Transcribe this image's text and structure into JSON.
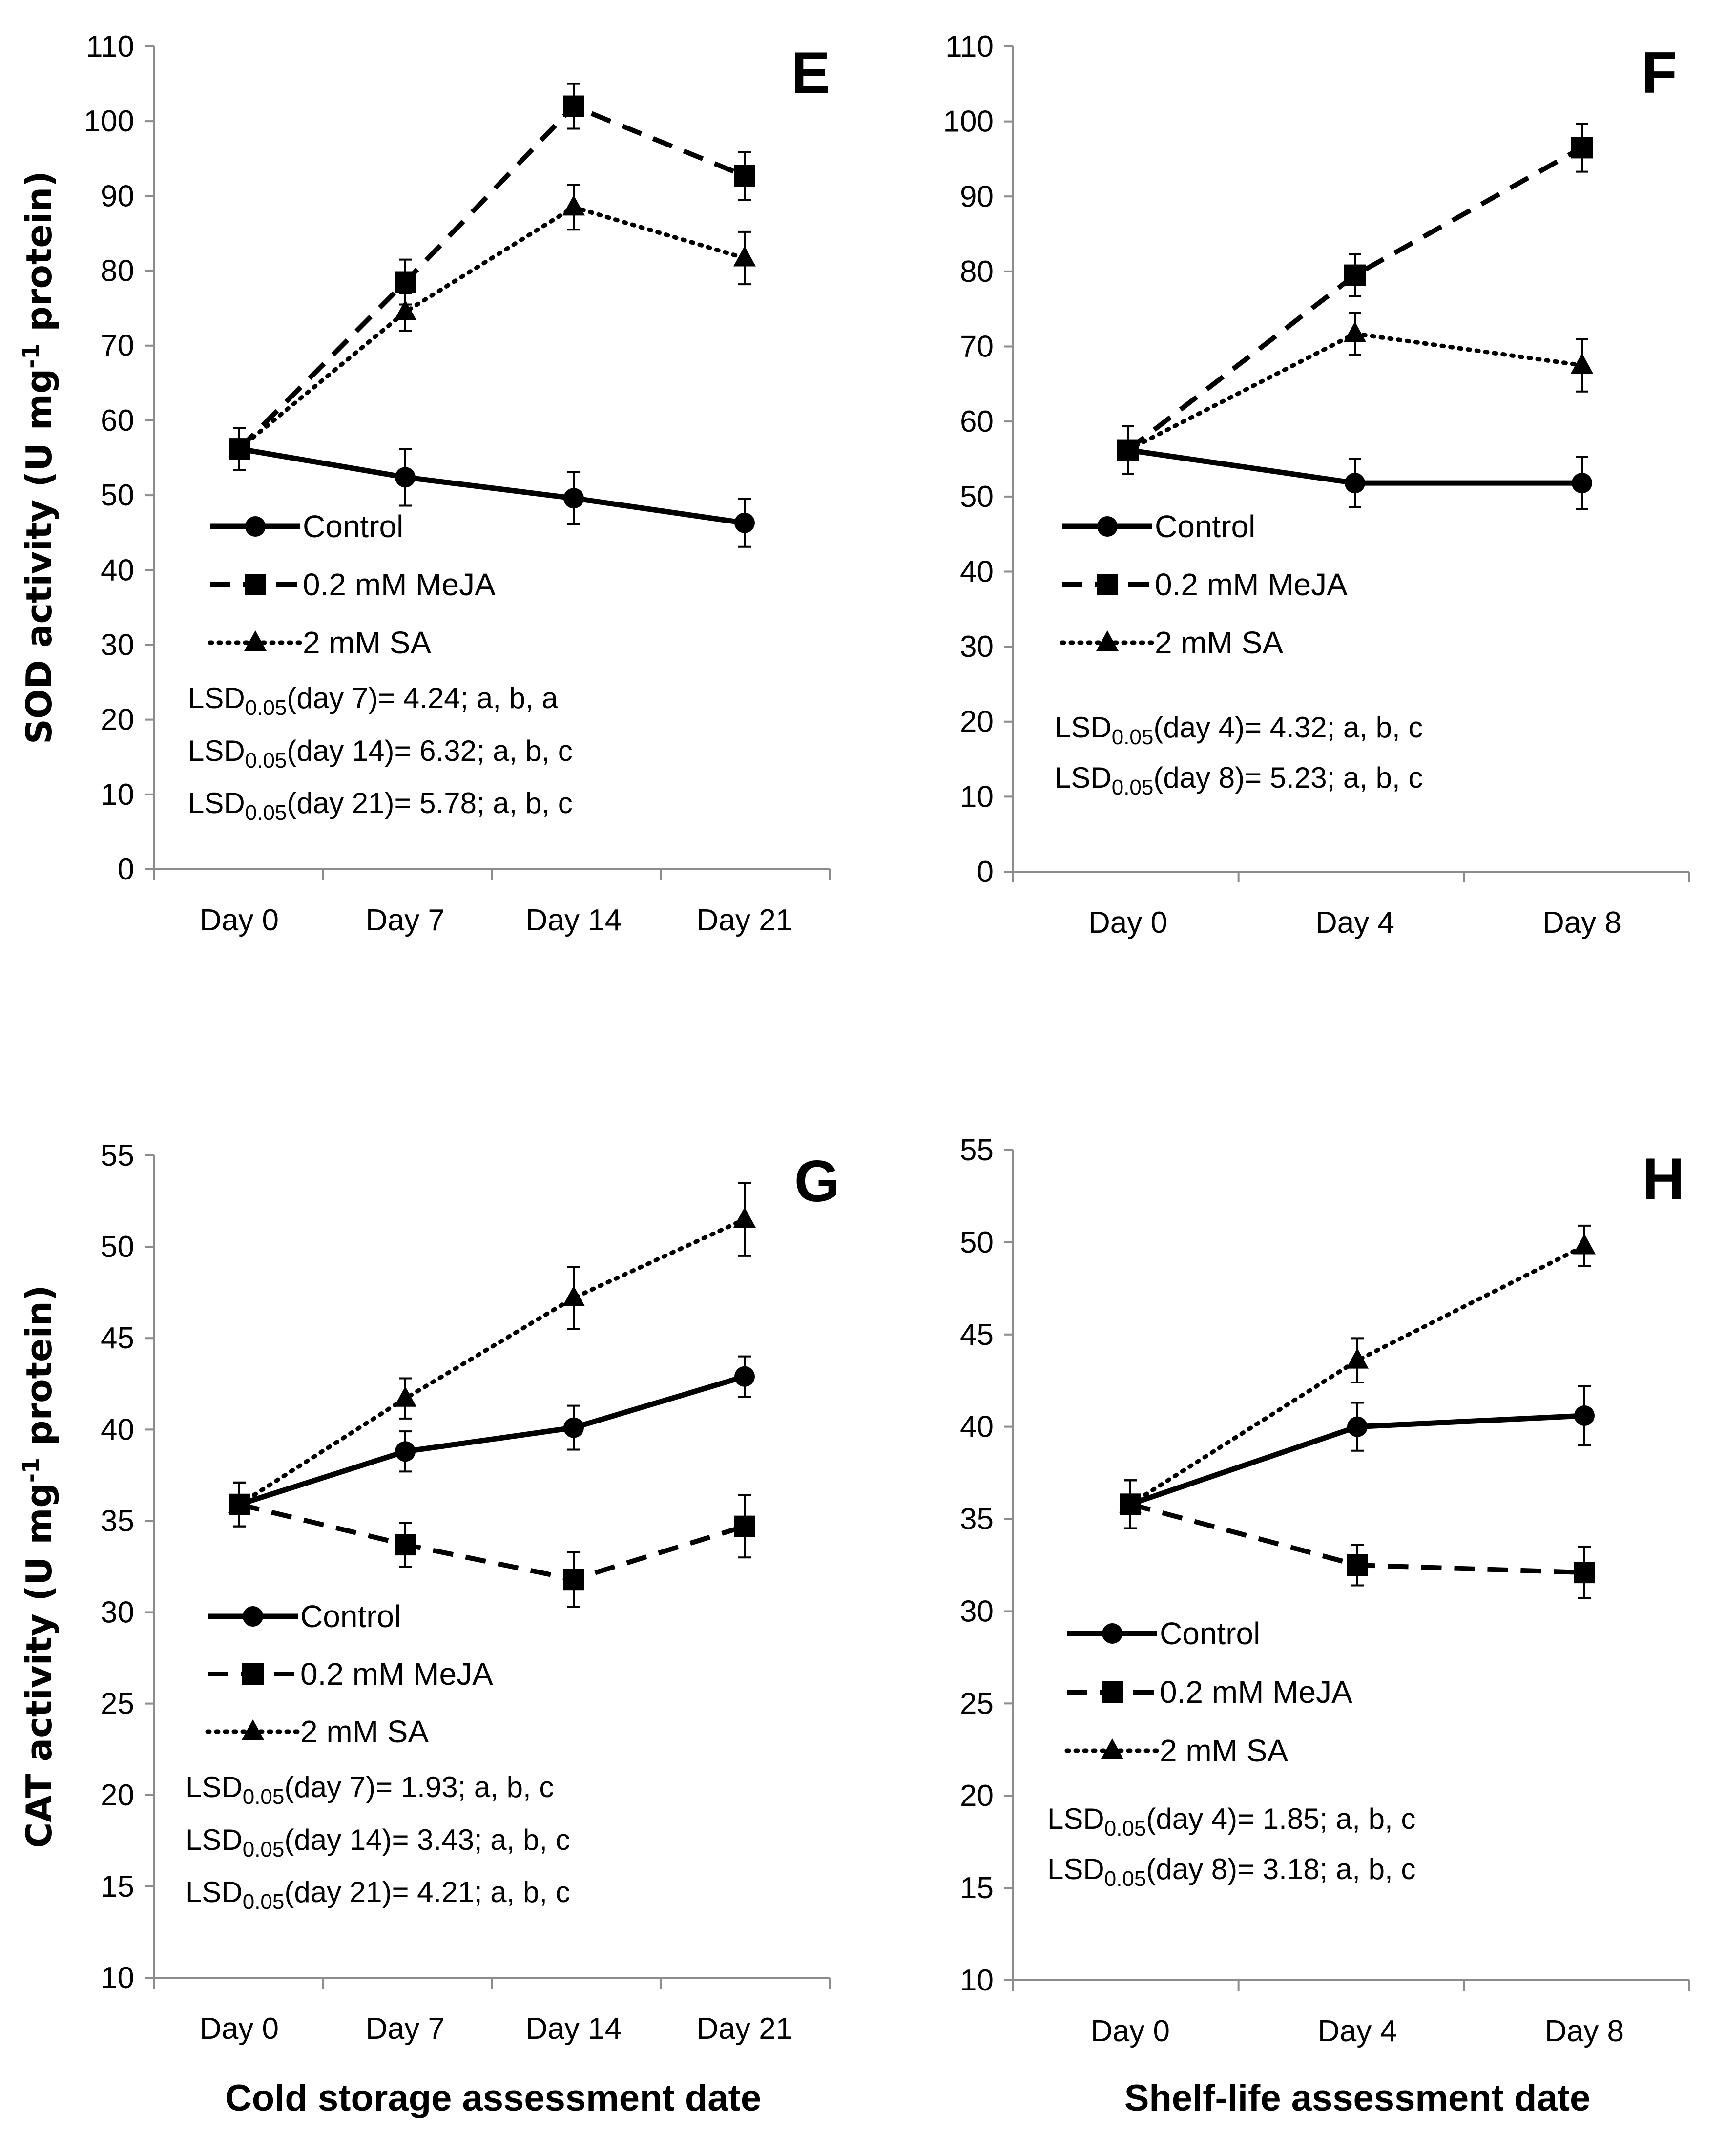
{
  "chart_data": [
    {
      "panel": "E",
      "type": "line",
      "ylabel_main": "SOD activity (U mg",
      "ylabel_sup": "-1",
      "ylabel_rest": " protein)",
      "xlabel": "",
      "ylim": [
        0,
        110
      ],
      "yticks": [
        "0",
        "10",
        "20",
        "30",
        "40",
        "50",
        "60",
        "70",
        "80",
        "90",
        "100",
        "110"
      ],
      "categories": [
        "Day 0",
        "Day 7",
        "Day 14",
        "Day 21"
      ],
      "series": [
        {
          "name": "Control",
          "values": [
            56.2,
            52.4,
            49.6,
            46.3
          ],
          "errors": [
            2.8,
            3.8,
            3.5,
            3.2
          ]
        },
        {
          "name": "0.2 mM MeJA",
          "values": [
            56.2,
            78.5,
            102.0,
            92.7
          ],
          "errors": [
            2.8,
            3.0,
            3.0,
            3.2
          ]
        },
        {
          "name": "2 mM SA",
          "values": [
            56.2,
            74.5,
            88.5,
            81.7
          ],
          "errors": [
            2.8,
            2.5,
            3.0,
            3.5
          ]
        }
      ],
      "annotations": [
        {
          "pre": "LSD",
          "sub": "0.05",
          "post": "(day 7)= 4.24; a, b, a"
        },
        {
          "pre": "LSD",
          "sub": "0.05",
          "post": "(day 14)= 6.32; a, b, c"
        },
        {
          "pre": "LSD",
          "sub": "0.05",
          "post": "(day 21)= 5.78; a, b, c"
        }
      ]
    },
    {
      "panel": "F",
      "type": "line",
      "ylabel_main": "",
      "ylabel_sup": "",
      "ylabel_rest": "",
      "xlabel": "",
      "ylim": [
        0,
        110
      ],
      "yticks": [
        "0",
        "10",
        "20",
        "30",
        "40",
        "50",
        "60",
        "70",
        "80",
        "90",
        "100",
        "110"
      ],
      "categories": [
        "Day 0",
        "Day 4",
        "Day 8"
      ],
      "series": [
        {
          "name": "Control",
          "values": [
            56.2,
            51.8,
            51.8
          ],
          "errors": [
            3.2,
            3.2,
            3.5
          ]
        },
        {
          "name": "0.2 mM MeJA",
          "values": [
            56.2,
            79.5,
            96.5
          ],
          "errors": [
            3.2,
            2.8,
            3.2
          ]
        },
        {
          "name": "2 mM SA",
          "values": [
            56.2,
            71.7,
            67.5
          ],
          "errors": [
            3.2,
            2.8,
            3.5
          ]
        }
      ],
      "annotations": [
        {
          "pre": "LSD",
          "sub": "0.05",
          "post": "(day 4)= 4.32; a, b, c"
        },
        {
          "pre": "LSD",
          "sub": "0.05",
          "post": "(day 8)= 5.23; a, b, c"
        }
      ]
    },
    {
      "panel": "G",
      "type": "line",
      "ylabel_main": "CAT activity (U mg",
      "ylabel_sup": "-1",
      "ylabel_rest": " protein)",
      "xlabel": "Cold storage assessment date",
      "ylim": [
        10,
        55
      ],
      "yticks": [
        "10",
        "15",
        "20",
        "25",
        "30",
        "35",
        "40",
        "45",
        "50",
        "55"
      ],
      "categories": [
        "Day 0",
        "Day 7",
        "Day 14",
        "Day 21"
      ],
      "series": [
        {
          "name": "Control",
          "values": [
            35.9,
            38.8,
            40.1,
            42.9
          ],
          "errors": [
            1.2,
            1.1,
            1.2,
            1.1
          ]
        },
        {
          "name": "0.2 mM MeJA",
          "values": [
            35.9,
            33.7,
            31.8,
            34.7
          ],
          "errors": [
            1.2,
            1.2,
            1.5,
            1.7
          ]
        },
        {
          "name": "2 mM SA",
          "values": [
            35.9,
            41.7,
            47.2,
            51.5
          ],
          "errors": [
            1.2,
            1.1,
            1.7,
            2.0
          ]
        }
      ],
      "annotations": [
        {
          "pre": "LSD",
          "sub": "0.05",
          "post": "(day 7)= 1.93; a, b, c"
        },
        {
          "pre": "LSD",
          "sub": "0.05",
          "post": "(day 14)= 3.43; a, b, c"
        },
        {
          "pre": "LSD",
          "sub": "0.05",
          "post": "(day 21)= 4.21; a, b, c"
        }
      ]
    },
    {
      "panel": "H",
      "type": "line",
      "ylabel_main": "",
      "ylabel_sup": "",
      "ylabel_rest": "",
      "xlabel": "Shelf-life assessment date",
      "ylim": [
        10,
        55
      ],
      "yticks": [
        "10",
        "15",
        "20",
        "25",
        "30",
        "35",
        "40",
        "45",
        "50",
        "55"
      ],
      "categories": [
        "Day 0",
        "Day 4",
        "Day 8"
      ],
      "series": [
        {
          "name": "Control",
          "values": [
            35.8,
            40.0,
            40.6
          ],
          "errors": [
            1.3,
            1.3,
            1.6
          ]
        },
        {
          "name": "0.2 mM MeJA",
          "values": [
            35.8,
            32.5,
            32.1
          ],
          "errors": [
            1.3,
            1.1,
            1.4
          ]
        },
        {
          "name": "2 mM SA",
          "values": [
            35.8,
            43.6,
            49.8
          ],
          "errors": [
            1.3,
            1.2,
            1.1
          ]
        }
      ],
      "annotations": [
        {
          "pre": "LSD",
          "sub": "0.05",
          "post": "(day 4)= 1.85; a, b, c"
        },
        {
          "pre": "LSD",
          "sub": "0.05",
          "post": "(day 8)= 3.18; a, b, c"
        }
      ]
    }
  ]
}
